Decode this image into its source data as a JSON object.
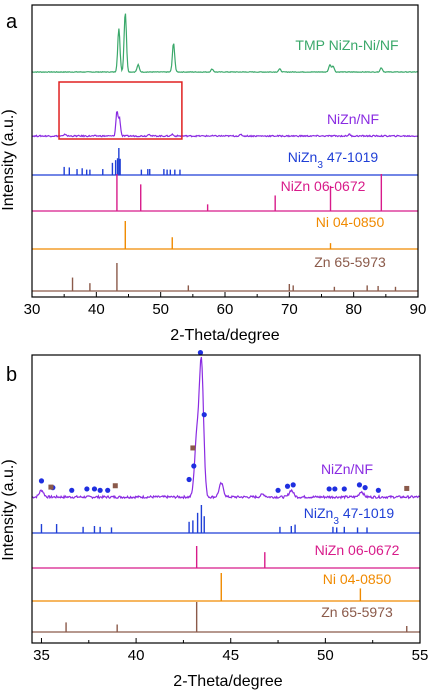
{
  "colors": {
    "green": "#3aa86a",
    "purple": "#8a2be2",
    "blue": "#1f3fd6",
    "magenta": "#d81b8a",
    "orange": "#f08a00",
    "brown": "#8b5a4a",
    "dot_blue": "#1f2fe0",
    "square_brown": "#8b5a4a",
    "highlight_box": "#e02020"
  },
  "chart_data": [
    {
      "type": "line",
      "panel_label": "a",
      "xlabel": "2-Theta/degree",
      "ylabel": "Intensity (a.u.)",
      "xlim": [
        30,
        90
      ],
      "xticks": [
        30,
        40,
        50,
        60,
        70,
        80,
        90
      ],
      "grid": false,
      "legend": "none",
      "highlight_box_x": [
        34.2,
        53.3
      ],
      "series": [
        {
          "name": "TMP NiZn-Ni/NF",
          "kind": "pattern",
          "color_key": "green",
          "peaks": [
            [
              43.5,
              0.72
            ],
            [
              44.5,
              1.0
            ],
            [
              46.5,
              0.12
            ],
            [
              52.0,
              0.48
            ],
            [
              58.0,
              0.05
            ],
            [
              68.5,
              0.05
            ],
            [
              76.3,
              0.12
            ],
            [
              76.8,
              0.1
            ],
            [
              84.3,
              0.07
            ]
          ]
        },
        {
          "name": "NiZn/NF",
          "kind": "pattern",
          "color_key": "purple",
          "peaks": [
            [
              35.2,
              0.04
            ],
            [
              43.2,
              0.55
            ],
            [
              43.6,
              0.4
            ],
            [
              48.2,
              0.05
            ],
            [
              51.8,
              0.04
            ],
            [
              62.5,
              0.03
            ],
            [
              79.3,
              0.04
            ]
          ]
        },
        {
          "name": "NiZn3 47-1019",
          "kind": "reference",
          "color_key": "blue",
          "sticks": [
            [
              35.0,
              0.3
            ],
            [
              35.8,
              0.28
            ],
            [
              37.0,
              0.22
            ],
            [
              37.8,
              0.25
            ],
            [
              38.5,
              0.2
            ],
            [
              39.0,
              0.2
            ],
            [
              41.0,
              0.22
            ],
            [
              42.5,
              0.45
            ],
            [
              43.0,
              0.55
            ],
            [
              43.3,
              0.62
            ],
            [
              43.5,
              1.0
            ],
            [
              43.7,
              0.6
            ],
            [
              47.0,
              0.2
            ],
            [
              48.0,
              0.22
            ],
            [
              48.3,
              0.22
            ],
            [
              50.5,
              0.22
            ],
            [
              51.0,
              0.2
            ],
            [
              51.5,
              0.2
            ],
            [
              52.2,
              0.2
            ],
            [
              53.0,
              0.2
            ]
          ]
        },
        {
          "name": "NiZn 06-0672",
          "kind": "reference",
          "color_key": "magenta",
          "sticks": [
            [
              43.2,
              1.0
            ],
            [
              46.9,
              0.72
            ],
            [
              57.3,
              0.18
            ],
            [
              67.8,
              0.42
            ],
            [
              76.4,
              0.68
            ],
            [
              84.3,
              1.0
            ]
          ]
        },
        {
          "name": "Ni 04-0850",
          "kind": "reference",
          "color_key": "orange",
          "sticks": [
            [
              44.5,
              1.0
            ],
            [
              51.8,
              0.42
            ],
            [
              76.4,
              0.21
            ]
          ]
        },
        {
          "name": "Zn 65-5973",
          "kind": "reference",
          "color_key": "brown",
          "sticks": [
            [
              36.3,
              0.48
            ],
            [
              39.0,
              0.28
            ],
            [
              43.2,
              1.0
            ],
            [
              54.3,
              0.2
            ],
            [
              70.0,
              0.25
            ],
            [
              70.6,
              0.2
            ],
            [
              77.0,
              0.15
            ],
            [
              82.1,
              0.2
            ],
            [
              83.8,
              0.18
            ],
            [
              86.5,
              0.15
            ]
          ]
        }
      ]
    },
    {
      "type": "line",
      "panel_label": "b",
      "xlabel": "2-Theta/degree",
      "ylabel": "Intensity (a.u.)",
      "xlim": [
        34.5,
        55
      ],
      "xticks": [
        35,
        40,
        45,
        50,
        55
      ],
      "grid": false,
      "legend": "none",
      "series": [
        {
          "name": "NiZn/NF",
          "kind": "pattern",
          "color_key": "purple",
          "peaks": [
            [
              35.0,
              0.05
            ],
            [
              43.2,
              0.42
            ],
            [
              43.45,
              1.0
            ],
            [
              44.5,
              0.1
            ],
            [
              46.7,
              0.02
            ],
            [
              48.2,
              0.05
            ],
            [
              51.9,
              0.04
            ]
          ],
          "markers_circle": [
            [
              35.0,
              0.09
            ],
            [
              35.6,
              0.04
            ],
            [
              36.6,
              0.02
            ],
            [
              37.4,
              0.03
            ],
            [
              37.8,
              0.03
            ],
            [
              38.1,
              0.02
            ],
            [
              38.5,
              0.02
            ],
            [
              42.8,
              0.1
            ],
            [
              43.05,
              0.2
            ],
            [
              43.4,
              1.04
            ],
            [
              43.6,
              0.58
            ],
            [
              47.5,
              0.02
            ],
            [
              48.0,
              0.05
            ],
            [
              48.3,
              0.06
            ],
            [
              50.2,
              0.03
            ],
            [
              50.5,
              0.03
            ],
            [
              51.0,
              0.03
            ],
            [
              51.8,
              0.06
            ],
            [
              52.1,
              0.04
            ],
            [
              52.8,
              0.02
            ]
          ],
          "markers_square": [
            [
              35.5,
              0.04
            ],
            [
              38.9,
              0.05
            ],
            [
              43.0,
              0.33
            ],
            [
              54.3,
              0.03
            ]
          ]
        },
        {
          "name": "NiZn3 47-1019",
          "kind": "reference",
          "color_key": "blue",
          "sticks": [
            [
              35.0,
              0.32
            ],
            [
              35.8,
              0.32
            ],
            [
              37.2,
              0.22
            ],
            [
              37.8,
              0.25
            ],
            [
              38.1,
              0.22
            ],
            [
              38.7,
              0.2
            ],
            [
              42.8,
              0.4
            ],
            [
              43.0,
              0.45
            ],
            [
              43.25,
              0.72
            ],
            [
              43.45,
              1.0
            ],
            [
              43.6,
              0.6
            ],
            [
              47.6,
              0.22
            ],
            [
              48.2,
              0.25
            ],
            [
              48.4,
              0.3
            ],
            [
              50.4,
              0.22
            ],
            [
              50.6,
              0.2
            ],
            [
              51.0,
              0.22
            ],
            [
              51.7,
              0.2
            ],
            [
              52.2,
              0.2
            ]
          ]
        },
        {
          "name": "NiZn 06-0672",
          "kind": "reference",
          "color_key": "magenta",
          "sticks": [
            [
              43.2,
              1.0
            ],
            [
              46.8,
              0.72
            ]
          ]
        },
        {
          "name": "Ni 04-0850",
          "kind": "reference",
          "color_key": "orange",
          "sticks": [
            [
              44.5,
              1.0
            ],
            [
              51.85,
              0.45
            ]
          ]
        },
        {
          "name": "Zn 65-5973",
          "kind": "reference",
          "color_key": "brown",
          "sticks": [
            [
              36.3,
              0.32
            ],
            [
              39.0,
              0.25
            ],
            [
              43.2,
              1.0
            ],
            [
              54.3,
              0.2
            ]
          ]
        }
      ]
    }
  ]
}
